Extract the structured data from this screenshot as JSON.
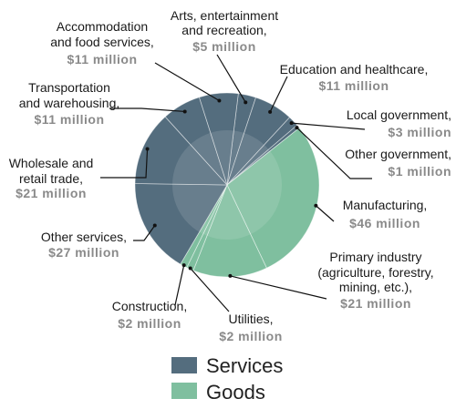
{
  "chart_data": {
    "type": "pie",
    "title": "",
    "unit": "million",
    "slices": [
      {
        "label": "Arts, entertainment and recreation,",
        "value": 5,
        "value_label": "$5 million",
        "group": "Services"
      },
      {
        "label": "Education and healthcare,",
        "value": 11,
        "value_label": "$11 million",
        "group": "Services"
      },
      {
        "label": "Local government,",
        "value": 3,
        "value_label": "$3 million",
        "group": "Services"
      },
      {
        "label": "Other government,",
        "value": 1,
        "value_label": "$1 million",
        "group": "Services"
      },
      {
        "label": "Manufacturing,",
        "value": 46,
        "value_label": "$46 million",
        "group": "Goods"
      },
      {
        "label": "Primary industry (agriculture, forestry, mining, etc.),",
        "value": 21,
        "value_label": "$21 million",
        "group": "Goods"
      },
      {
        "label": "Utilities,",
        "value": 2,
        "value_label": "$2 million",
        "group": "Goods"
      },
      {
        "label": "Construction,",
        "value": 2,
        "value_label": "$2 million",
        "group": "Goods"
      },
      {
        "label": "Other services,",
        "value": 27,
        "value_label": "$27 million",
        "group": "Services"
      },
      {
        "label": "Wholesale and retail trade,",
        "value": 21,
        "value_label": "$21 million",
        "group": "Services"
      },
      {
        "label": "Transportation and warehousing,",
        "value": 11,
        "value_label": "$11 million",
        "group": "Services"
      },
      {
        "label": "Accommodation and food services,",
        "value": 11,
        "value_label": "$11 million",
        "group": "Services"
      }
    ],
    "legend": [
      {
        "name": "Services",
        "color": "#546d7e"
      },
      {
        "name": "Goods",
        "color": "#7fbf9f"
      }
    ],
    "legend_position": "bottom-center"
  }
}
